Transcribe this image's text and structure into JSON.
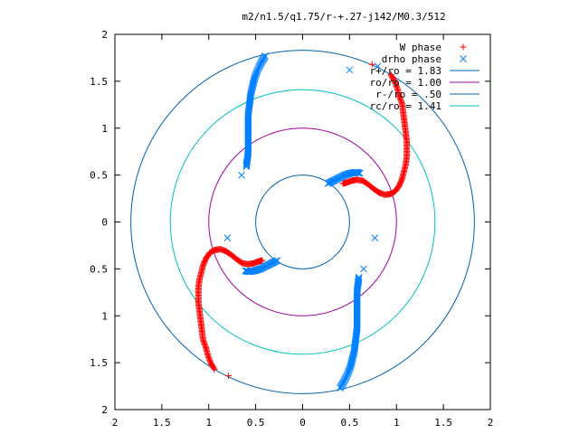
{
  "chart_data": {
    "type": "scatter",
    "title": "m2/n1.5/q1.75/r-+.27-j142/M0.3/512",
    "xlim": [
      -2,
      2
    ],
    "ylim": [
      -2,
      2
    ],
    "x_ticks": [
      -2,
      -1.5,
      -1,
      -0.5,
      0,
      0.5,
      1,
      1.5,
      2
    ],
    "y_ticks": [
      -2,
      -1.5,
      -1,
      -0.5,
      0,
      0.5,
      1,
      1.5,
      2
    ],
    "x_tick_labels": [
      "2",
      "1.5",
      "1",
      "0.5",
      "0",
      "0.5",
      "1",
      "1.5",
      "2"
    ],
    "y_tick_labels": [
      "2",
      "1.5",
      "1",
      "0.5",
      "0",
      "0.5",
      "1",
      "1.5",
      "2"
    ],
    "grid": false,
    "legend_position": "top-right",
    "legend": [
      {
        "label": "W phase",
        "marker": "+",
        "color": "#ff0000"
      },
      {
        "label": "drho phase",
        "marker": "x",
        "color": "#0080ff"
      },
      {
        "label": "r+/ro = 1.83",
        "line": true,
        "color": "#0060ad"
      },
      {
        "label": "ro/ro = 1.00",
        "line": true,
        "color": "#a000a0"
      },
      {
        "label": "r-/ro = .50",
        "line": true,
        "color": "#0060ad"
      },
      {
        "label": "rc/ro = 1.41",
        "line": true,
        "color": "#00c0c0"
      }
    ],
    "circles": [
      {
        "name": "r+/ro = 1.83",
        "radius": 1.83,
        "color": "#0060ad"
      },
      {
        "name": "ro/ro = 1.00",
        "radius": 1.0,
        "color": "#a000a0"
      },
      {
        "name": "r-/ro = .50",
        "radius": 0.5,
        "color": "#0060ad"
      },
      {
        "name": "rc/ro = 1.41",
        "radius": 1.41,
        "color": "#00c0c0"
      }
    ],
    "series": [
      {
        "name": "W phase",
        "color": "#ff0000",
        "marker": "+",
        "points": [
          [
            0.94,
            1.57
          ],
          [
            0.98,
            1.5
          ],
          [
            1.01,
            1.42
          ],
          [
            1.03,
            1.34
          ],
          [
            1.06,
            1.26
          ],
          [
            1.07,
            1.18
          ],
          [
            1.08,
            1.1
          ],
          [
            1.09,
            1.02
          ],
          [
            1.1,
            0.94
          ],
          [
            1.11,
            0.86
          ],
          [
            1.11,
            0.78
          ],
          [
            1.11,
            0.7
          ],
          [
            1.1,
            0.62
          ],
          [
            1.08,
            0.54
          ],
          [
            1.06,
            0.46
          ],
          [
            1.03,
            0.39
          ],
          [
            0.99,
            0.33
          ],
          [
            0.94,
            0.3
          ],
          [
            0.88,
            0.29
          ],
          [
            0.82,
            0.31
          ],
          [
            0.76,
            0.35
          ],
          [
            0.7,
            0.4
          ],
          [
            0.64,
            0.44
          ],
          [
            0.58,
            0.45
          ],
          [
            0.52,
            0.44
          ],
          [
            0.47,
            0.42
          ],
          [
            0.43,
            0.41
          ],
          [
            -0.94,
            -1.57
          ],
          [
            -0.98,
            -1.5
          ],
          [
            -1.01,
            -1.42
          ],
          [
            -1.03,
            -1.34
          ],
          [
            -1.06,
            -1.26
          ],
          [
            -1.07,
            -1.18
          ],
          [
            -1.08,
            -1.1
          ],
          [
            -1.09,
            -1.02
          ],
          [
            -1.1,
            -0.94
          ],
          [
            -1.11,
            -0.86
          ],
          [
            -1.11,
            -0.78
          ],
          [
            -1.11,
            -0.7
          ],
          [
            -1.1,
            -0.62
          ],
          [
            -1.08,
            -0.54
          ],
          [
            -1.06,
            -0.46
          ],
          [
            -1.03,
            -0.39
          ],
          [
            -0.99,
            -0.33
          ],
          [
            -0.94,
            -0.3
          ],
          [
            -0.88,
            -0.29
          ],
          [
            -0.82,
            -0.31
          ],
          [
            -0.76,
            -0.35
          ],
          [
            -0.7,
            -0.4
          ],
          [
            -0.64,
            -0.44
          ],
          [
            -0.58,
            -0.45
          ],
          [
            -0.52,
            -0.44
          ],
          [
            -0.47,
            -0.42
          ],
          [
            -0.43,
            -0.41
          ],
          [
            0.74,
            1.68
          ],
          [
            -0.79,
            -1.64
          ]
        ]
      },
      {
        "name": "drho phase",
        "color": "#0080ff",
        "marker": "x",
        "points": [
          [
            -0.4,
            1.77
          ],
          [
            -0.44,
            1.7
          ],
          [
            -0.48,
            1.62
          ],
          [
            -0.51,
            1.54
          ],
          [
            -0.53,
            1.46
          ],
          [
            -0.55,
            1.38
          ],
          [
            -0.56,
            1.3
          ],
          [
            -0.57,
            1.22
          ],
          [
            -0.58,
            1.14
          ],
          [
            -0.58,
            1.06
          ],
          [
            -0.58,
            0.98
          ],
          [
            -0.58,
            0.9
          ],
          [
            -0.58,
            0.82
          ],
          [
            -0.58,
            0.74
          ],
          [
            -0.59,
            0.66
          ],
          [
            -0.6,
            0.59
          ],
          [
            0.4,
            -1.77
          ],
          [
            0.44,
            -1.7
          ],
          [
            0.48,
            -1.62
          ],
          [
            0.51,
            -1.54
          ],
          [
            0.53,
            -1.46
          ],
          [
            0.55,
            -1.38
          ],
          [
            0.56,
            -1.3
          ],
          [
            0.57,
            -1.22
          ],
          [
            0.58,
            -1.14
          ],
          [
            0.58,
            -1.06
          ],
          [
            0.58,
            -0.98
          ],
          [
            0.58,
            -0.9
          ],
          [
            0.58,
            -0.82
          ],
          [
            0.58,
            -0.74
          ],
          [
            0.59,
            -0.66
          ],
          [
            0.6,
            -0.59
          ],
          [
            0.27,
            0.41
          ],
          [
            0.33,
            0.44
          ],
          [
            0.39,
            0.47
          ],
          [
            0.45,
            0.5
          ],
          [
            0.51,
            0.52
          ],
          [
            0.57,
            0.53
          ],
          [
            0.61,
            0.52
          ],
          [
            -0.27,
            -0.41
          ],
          [
            -0.33,
            -0.44
          ],
          [
            -0.39,
            -0.47
          ],
          [
            -0.45,
            -0.5
          ],
          [
            -0.51,
            -0.52
          ],
          [
            -0.57,
            -0.53
          ],
          [
            -0.61,
            -0.52
          ],
          [
            0.77,
            -0.17
          ],
          [
            0.65,
            -0.5
          ],
          [
            -0.65,
            0.5
          ],
          [
            -0.8,
            -0.17
          ],
          [
            0.5,
            1.62
          ],
          [
            0.8,
            1.66
          ]
        ]
      }
    ]
  }
}
